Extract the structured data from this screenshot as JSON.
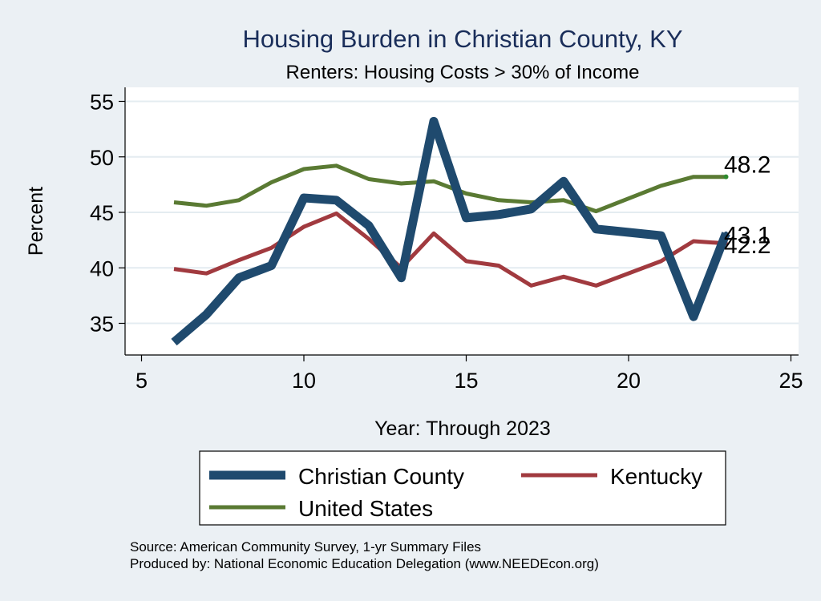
{
  "chart_data": {
    "type": "line",
    "title": "Housing Burden in Christian County, KY",
    "subtitle": "Renters: Housing Costs > 30% of Income",
    "xlabel": "Year: Through 2023",
    "ylabel": "Percent",
    "xlim": [
      5,
      25
    ],
    "ylim": [
      32,
      56
    ],
    "xticks": [
      5,
      10,
      15,
      20,
      25
    ],
    "yticks": [
      35,
      40,
      45,
      50,
      55
    ],
    "grid": "horizontal",
    "legend_position": "bottom",
    "series": [
      {
        "name": "Christian County",
        "color": "#1f4a6e",
        "x": [
          6,
          7,
          8,
          9,
          10,
          11,
          12,
          13,
          14,
          15,
          16,
          17,
          18,
          19,
          21,
          22,
          23
        ],
        "values": [
          33.3,
          35.8,
          39.1,
          40.2,
          46.3,
          46.1,
          43.8,
          39.1,
          53.2,
          44.5,
          44.8,
          45.3,
          47.8,
          43.5,
          42.9,
          35.6,
          43.1
        ],
        "end_label": "43.1"
      },
      {
        "name": "Kentucky",
        "color": "#a13a3f",
        "x": [
          6,
          7,
          8,
          9,
          10,
          11,
          12,
          13,
          14,
          15,
          16,
          17,
          18,
          19,
          21,
          22,
          23
        ],
        "values": [
          39.9,
          39.5,
          40.7,
          41.8,
          43.7,
          44.9,
          42.6,
          40.0,
          43.1,
          40.6,
          40.2,
          38.4,
          39.2,
          38.4,
          40.6,
          42.4,
          42.2
        ],
        "end_label": "42.2"
      },
      {
        "name": "United States",
        "color": "#5a7a33",
        "x": [
          6,
          7,
          8,
          9,
          10,
          11,
          12,
          13,
          14,
          15,
          16,
          17,
          18,
          19,
          21,
          22,
          23
        ],
        "values": [
          45.9,
          45.6,
          46.1,
          47.7,
          48.9,
          49.2,
          48.0,
          47.6,
          47.8,
          46.7,
          46.1,
          45.9,
          46.1,
          45.1,
          47.4,
          48.2,
          48.2
        ],
        "end_label": "48.2"
      }
    ],
    "notes": [
      "Source: American Community Survey, 1-yr Summary Files",
      "Produced by: National Economic Education Delegation (www.NEEDEcon.org)"
    ]
  }
}
